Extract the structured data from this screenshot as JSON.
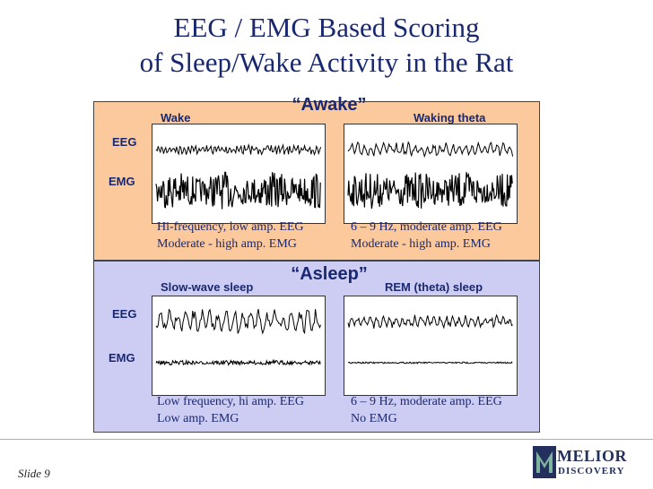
{
  "title": {
    "line1": "EEG / EMG Based Scoring",
    "line2": "of Sleep/Wake Activity in the Rat"
  },
  "awake": {
    "heading": "“Awake”",
    "left_label": "Wake",
    "right_label": "Waking theta",
    "row_eeg": "EEG",
    "row_emg": "EMG",
    "left_desc_1": "Hi-frequency, low amp. EEG",
    "left_desc_2": "Moderate - high amp. EMG",
    "right_desc_1": "6 – 9 Hz, moderate amp. EEG",
    "right_desc_2": "Moderate - high amp. EMG",
    "traces": {
      "left": {
        "eeg_amp": 0.35,
        "eeg_freq": 0.9,
        "emg_amp": 0.95
      },
      "right": {
        "eeg_amp": 0.55,
        "eeg_freq": 0.45,
        "emg_amp": 0.95
      }
    }
  },
  "asleep": {
    "heading": "“Asleep”",
    "left_label": "Slow-wave sleep",
    "right_label": "REM (theta) sleep",
    "row_eeg": "EEG",
    "row_emg": "EMG",
    "left_desc_1": "Low frequency, hi amp. EEG",
    "left_desc_2": "Low amp. EMG",
    "right_desc_1": "6 – 9 Hz, moderate amp. EEG",
    "right_desc_2": "No EMG",
    "traces": {
      "left": {
        "eeg_amp": 1.0,
        "eeg_freq": 0.3,
        "emg_amp": 0.12
      },
      "right": {
        "eeg_amp": 0.5,
        "eeg_freq": 0.45,
        "emg_amp": 0.04
      }
    }
  },
  "footer": {
    "slide": "Slide 9",
    "logo_line1": "MELIOR",
    "logo_line2": "DISCOVERY"
  },
  "colors": {
    "awake_bg": "#fbc99b",
    "asleep_bg": "#cdcdf4",
    "title": "#1a2870"
  }
}
